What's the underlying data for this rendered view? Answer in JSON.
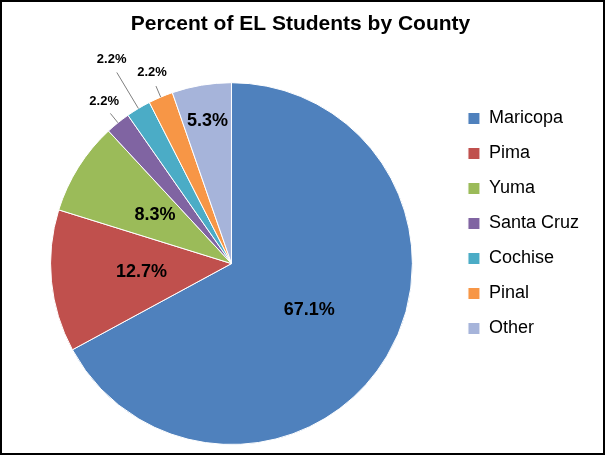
{
  "chart_data": {
    "type": "pie",
    "title": "Percent of EL Students by County",
    "categories": [
      "Maricopa",
      "Pima",
      "Yuma",
      "Santa Cruz",
      "Cochise",
      "Pinal",
      "Other"
    ],
    "values": [
      67.1,
      12.7,
      8.3,
      2.2,
      2.2,
      2.2,
      5.3
    ],
    "value_labels": [
      "67.1%",
      "12.7%",
      "8.3%",
      "2.2%",
      "2.2%",
      "2.2%",
      "5.3%"
    ],
    "colors": [
      "#4f81bd",
      "#c0504d",
      "#9bbb59",
      "#8064a2",
      "#4bacc6",
      "#f79646",
      "#a6b4da"
    ],
    "data_labels": true,
    "legend": "right"
  }
}
